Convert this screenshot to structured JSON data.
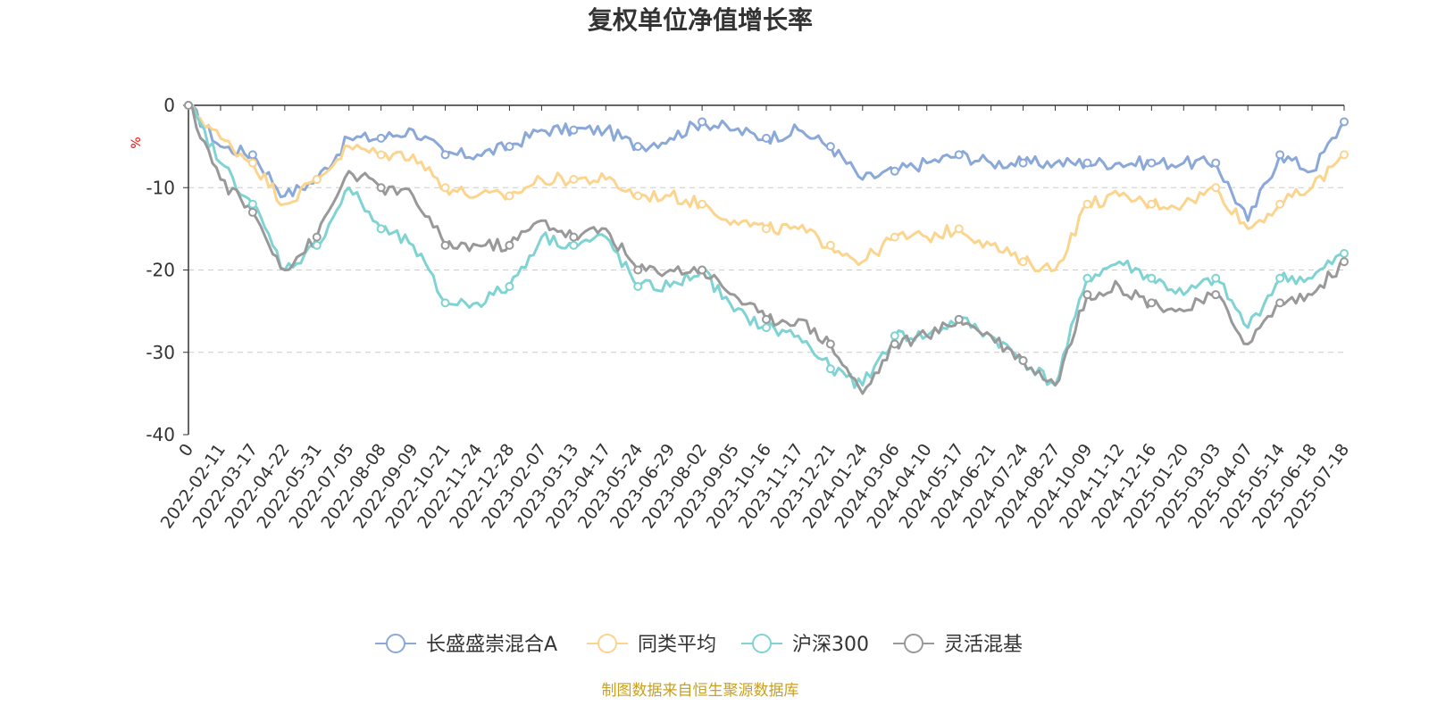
{
  "chart_data": {
    "type": "line",
    "title": "复权单位净值增长率",
    "y_unit": "%",
    "ylim": [
      -40,
      0
    ],
    "yticks": [
      "0",
      "-10",
      "-20",
      "-30",
      "-40"
    ],
    "grid": "horizontal-dashed",
    "legend_position": "bottom-center",
    "source": "制图数据来自恒生聚源数据库",
    "x_ticks": [
      "0",
      "2022-02-11",
      "2022-03-17",
      "2022-04-22",
      "2022-05-31",
      "2022-07-05",
      "2022-08-08",
      "2022-09-09",
      "2022-10-21",
      "2022-11-24",
      "2022-12-28",
      "2023-02-07",
      "2023-03-13",
      "2023-04-17",
      "2023-05-24",
      "2023-06-29",
      "2023-08-02",
      "2023-09-05",
      "2023-10-16",
      "2023-11-17",
      "2023-12-21",
      "2024-01-24",
      "2024-03-06",
      "2024-04-10",
      "2024-05-17",
      "2024-06-21",
      "2024-07-24",
      "2024-08-27",
      "2024-10-09",
      "2024-11-12",
      "2024-12-16",
      "2025-01-20",
      "2025-03-03",
      "2025-04-07",
      "2025-05-14",
      "2025-06-18",
      "2025-07-18"
    ],
    "series": [
      {
        "name": "长盛盛崇混合A",
        "color": "#8aa8d8",
        "values": [
          0,
          -5,
          -6,
          -11,
          -9,
          -4,
          -4,
          -3,
          -6,
          -6,
          -5,
          -3,
          -3,
          -3,
          -5,
          -4,
          -2,
          -3,
          -4,
          -3,
          -5,
          -9,
          -8,
          -7,
          -6,
          -7,
          -7,
          -7,
          -7,
          -7,
          -7,
          -7,
          -7,
          -14,
          -6,
          -8,
          -2
        ]
      },
      {
        "name": "同类平均",
        "color": "#fbd48e",
        "values": [
          0,
          -4,
          -7,
          -12,
          -9,
          -5,
          -6,
          -6,
          -10,
          -11,
          -11,
          -9,
          -9,
          -9,
          -11,
          -11,
          -12,
          -14,
          -15,
          -15,
          -17,
          -19,
          -16,
          -16,
          -15,
          -17,
          -19,
          -20,
          -12,
          -11,
          -12,
          -12,
          -10,
          -15,
          -12,
          -10,
          -6
        ]
      },
      {
        "name": "沪深300",
        "color": "#7fd3d3",
        "values": [
          0,
          -7,
          -12,
          -20,
          -17,
          -10,
          -15,
          -17,
          -24,
          -24,
          -22,
          -16,
          -17,
          -16,
          -22,
          -22,
          -20,
          -25,
          -27,
          -28,
          -32,
          -34,
          -28,
          -28,
          -26,
          -28,
          -31,
          -34,
          -21,
          -19,
          -21,
          -23,
          -21,
          -27,
          -21,
          -21,
          -18
        ]
      },
      {
        "name": "灵活混基",
        "color": "#999999",
        "values": [
          0,
          -9,
          -13,
          -20,
          -16,
          -8,
          -10,
          -11,
          -17,
          -17,
          -17,
          -14,
          -16,
          -15,
          -20,
          -20,
          -20,
          -23,
          -26,
          -26,
          -29,
          -35,
          -29,
          -28,
          -26,
          -28,
          -31,
          -34,
          -23,
          -22,
          -24,
          -25,
          -23,
          -29,
          -24,
          -23,
          -19
        ]
      }
    ]
  }
}
